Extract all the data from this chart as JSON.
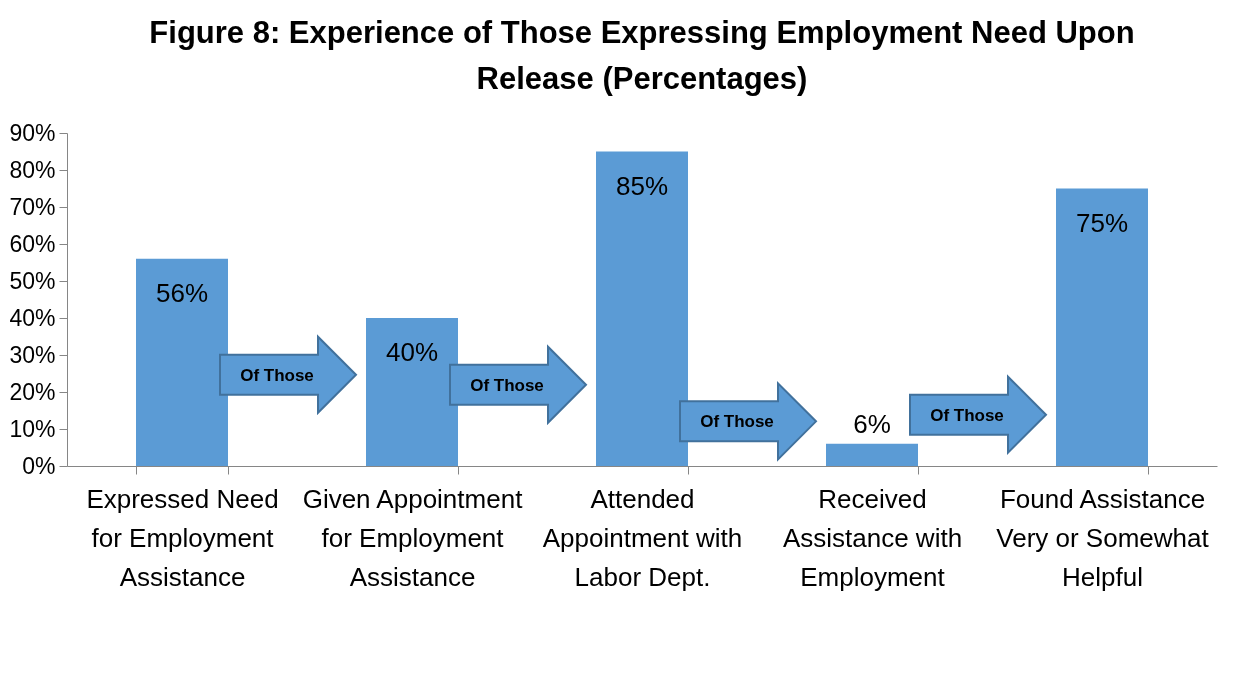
{
  "chart_data": {
    "type": "bar",
    "title": "Figure 8: Experience of Those Expressing Employment Need Upon Release (Percentages)",
    "categories": [
      "Expressed Need for Employment Assistance",
      "Given Appointment for Employment Assistance",
      "Attended Appointment with Labor Dept.",
      "Received Assistance with Employment",
      "Found Assistance Very or Somewhat Helpful"
    ],
    "values": [
      56,
      40,
      85,
      6,
      75
    ],
    "value_labels": [
      "56%",
      "40%",
      "85%",
      "6%",
      "75%"
    ],
    "color": "#5b9bd5",
    "ylim": [
      0,
      90
    ],
    "yticks": [
      {
        "value": 0,
        "label": "0%"
      },
      {
        "value": 10,
        "label": "10%"
      },
      {
        "value": 20,
        "label": "20%"
      },
      {
        "value": 30,
        "label": "30%"
      },
      {
        "value": 40,
        "label": "40%"
      },
      {
        "value": 50,
        "label": "50%"
      },
      {
        "value": 60,
        "label": "60%"
      },
      {
        "value": 70,
        "label": "70%"
      },
      {
        "value": 80,
        "label": "80%"
      },
      {
        "value": 90,
        "label": "90%"
      }
    ],
    "grid": false,
    "annotations": [
      "Of Those",
      "Of Those",
      "Of Those",
      "Of Those"
    ]
  }
}
